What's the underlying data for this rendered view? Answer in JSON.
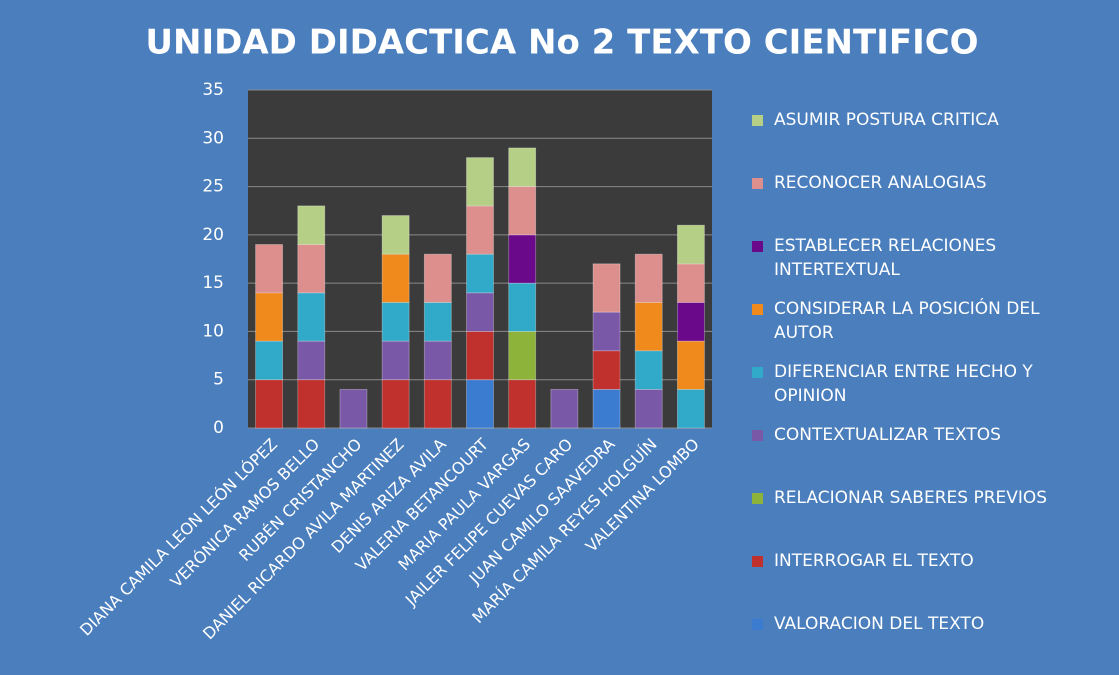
{
  "chart_data": {
    "type": "stacked_bar",
    "title": "UNIDAD DIDACTICA No 2 TEXTO CIENTIFICO",
    "categories": [
      "DIANA CAMILA LEON LEÓN LÓPEZ",
      "VERÓNICA RAMOS BELLO",
      "RUBÉN CRISTANCHO",
      "DANIEL RICARDO AVILA MARTINEZ",
      "DENIS ARIZA AVILA",
      "VALERIA BETANCOURT",
      "MARIA PAULA VARGAS",
      "JAILER FELIPE CUEVAS CARO",
      "JUAN CAMILO SAAVEDRA",
      "MARÍA CAMILA REYES HOLGUÍN",
      "VALENTINA LOMBO"
    ],
    "series": [
      {
        "name": "VALORACION DEL TEXTO",
        "color": "#3b7bd0",
        "values": [
          0,
          0,
          0,
          0,
          0,
          5,
          0,
          0,
          4,
          0,
          0
        ]
      },
      {
        "name": "INTERROGAR EL TEXTO",
        "color": "#c0302d",
        "values": [
          5,
          5,
          0,
          5,
          5,
          5,
          5,
          0,
          4,
          0,
          0
        ]
      },
      {
        "name": "RELACIONAR SABERES PREVIOS",
        "color": "#8db33a",
        "values": [
          0,
          0,
          0,
          0,
          0,
          0,
          5,
          0,
          0,
          0,
          0
        ]
      },
      {
        "name": "CONTEXTUALIZAR TEXTOS",
        "color": "#7a58a8",
        "values": [
          0,
          4,
          4,
          4,
          4,
          4,
          0,
          4,
          4,
          4,
          0
        ]
      },
      {
        "name": "DIFERENCIAR ENTRE HECHO Y OPINION",
        "color": "#31a9c8",
        "values": [
          4,
          5,
          0,
          4,
          4,
          4,
          5,
          0,
          0,
          4,
          4
        ]
      },
      {
        "name": "CONSIDERAR LA POSICIÓN DEL AUTOR",
        "color": "#f08a1c",
        "values": [
          5,
          0,
          0,
          5,
          0,
          0,
          0,
          0,
          0,
          5,
          5
        ]
      },
      {
        "name": "ESTABLECER RELACIONES INTERTEXTUAL",
        "color": "#6a0a8a",
        "values": [
          0,
          0,
          0,
          0,
          0,
          0,
          5,
          0,
          0,
          0,
          4
        ]
      },
      {
        "name": "RECONOCER ANALOGIAS",
        "color": "#dc8f8c",
        "values": [
          5,
          5,
          0,
          0,
          5,
          5,
          5,
          0,
          5,
          5,
          4
        ]
      },
      {
        "name": "ASUMIR POSTURA CRITICA",
        "color": "#b6cf86",
        "values": [
          0,
          4,
          0,
          4,
          0,
          5,
          4,
          0,
          0,
          0,
          4
        ]
      }
    ],
    "ylim": [
      0,
      35
    ],
    "yticks": [
      0,
      5,
      10,
      15,
      20,
      25,
      30,
      35
    ],
    "legend": "right"
  }
}
